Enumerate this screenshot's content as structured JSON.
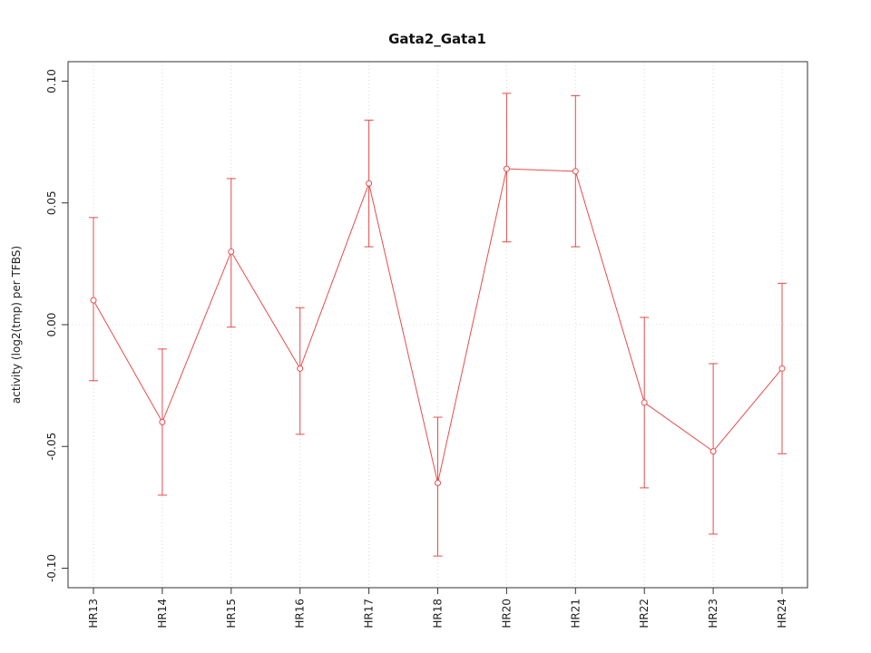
{
  "chart_data": {
    "type": "line",
    "title": "Gata2_Gata1",
    "ylabel": "activity (log2(tmp) per TFBS)",
    "xlabel": "",
    "categories": [
      "HR13",
      "HR14",
      "HR15",
      "HR16",
      "HR17",
      "HR18",
      "HR20",
      "HR21",
      "HR22",
      "HR23",
      "HR24"
    ],
    "values": [
      0.01,
      -0.04,
      0.03,
      -0.018,
      0.058,
      -0.065,
      0.064,
      0.063,
      -0.032,
      -0.052,
      -0.018
    ],
    "error_low": [
      -0.023,
      -0.07,
      -0.001,
      -0.045,
      0.032,
      -0.095,
      0.034,
      0.032,
      -0.067,
      -0.086,
      -0.053
    ],
    "error_high": [
      0.044,
      -0.01,
      0.06,
      0.007,
      0.084,
      -0.038,
      0.095,
      0.094,
      0.003,
      -0.016,
      0.017
    ],
    "ylim": [
      -0.1,
      0.1
    ],
    "yticks": [
      -0.1,
      -0.05,
      0.0,
      0.05,
      0.1
    ],
    "grid": "dotted vertical line at each category; dotted horizontal line at 0",
    "legend": "none",
    "marker": "open-circle",
    "series_color": "#e74c4c",
    "grid_color": "#d8d8d8",
    "zero_line_color": "#e8e0e0",
    "box_color": "#333333"
  }
}
